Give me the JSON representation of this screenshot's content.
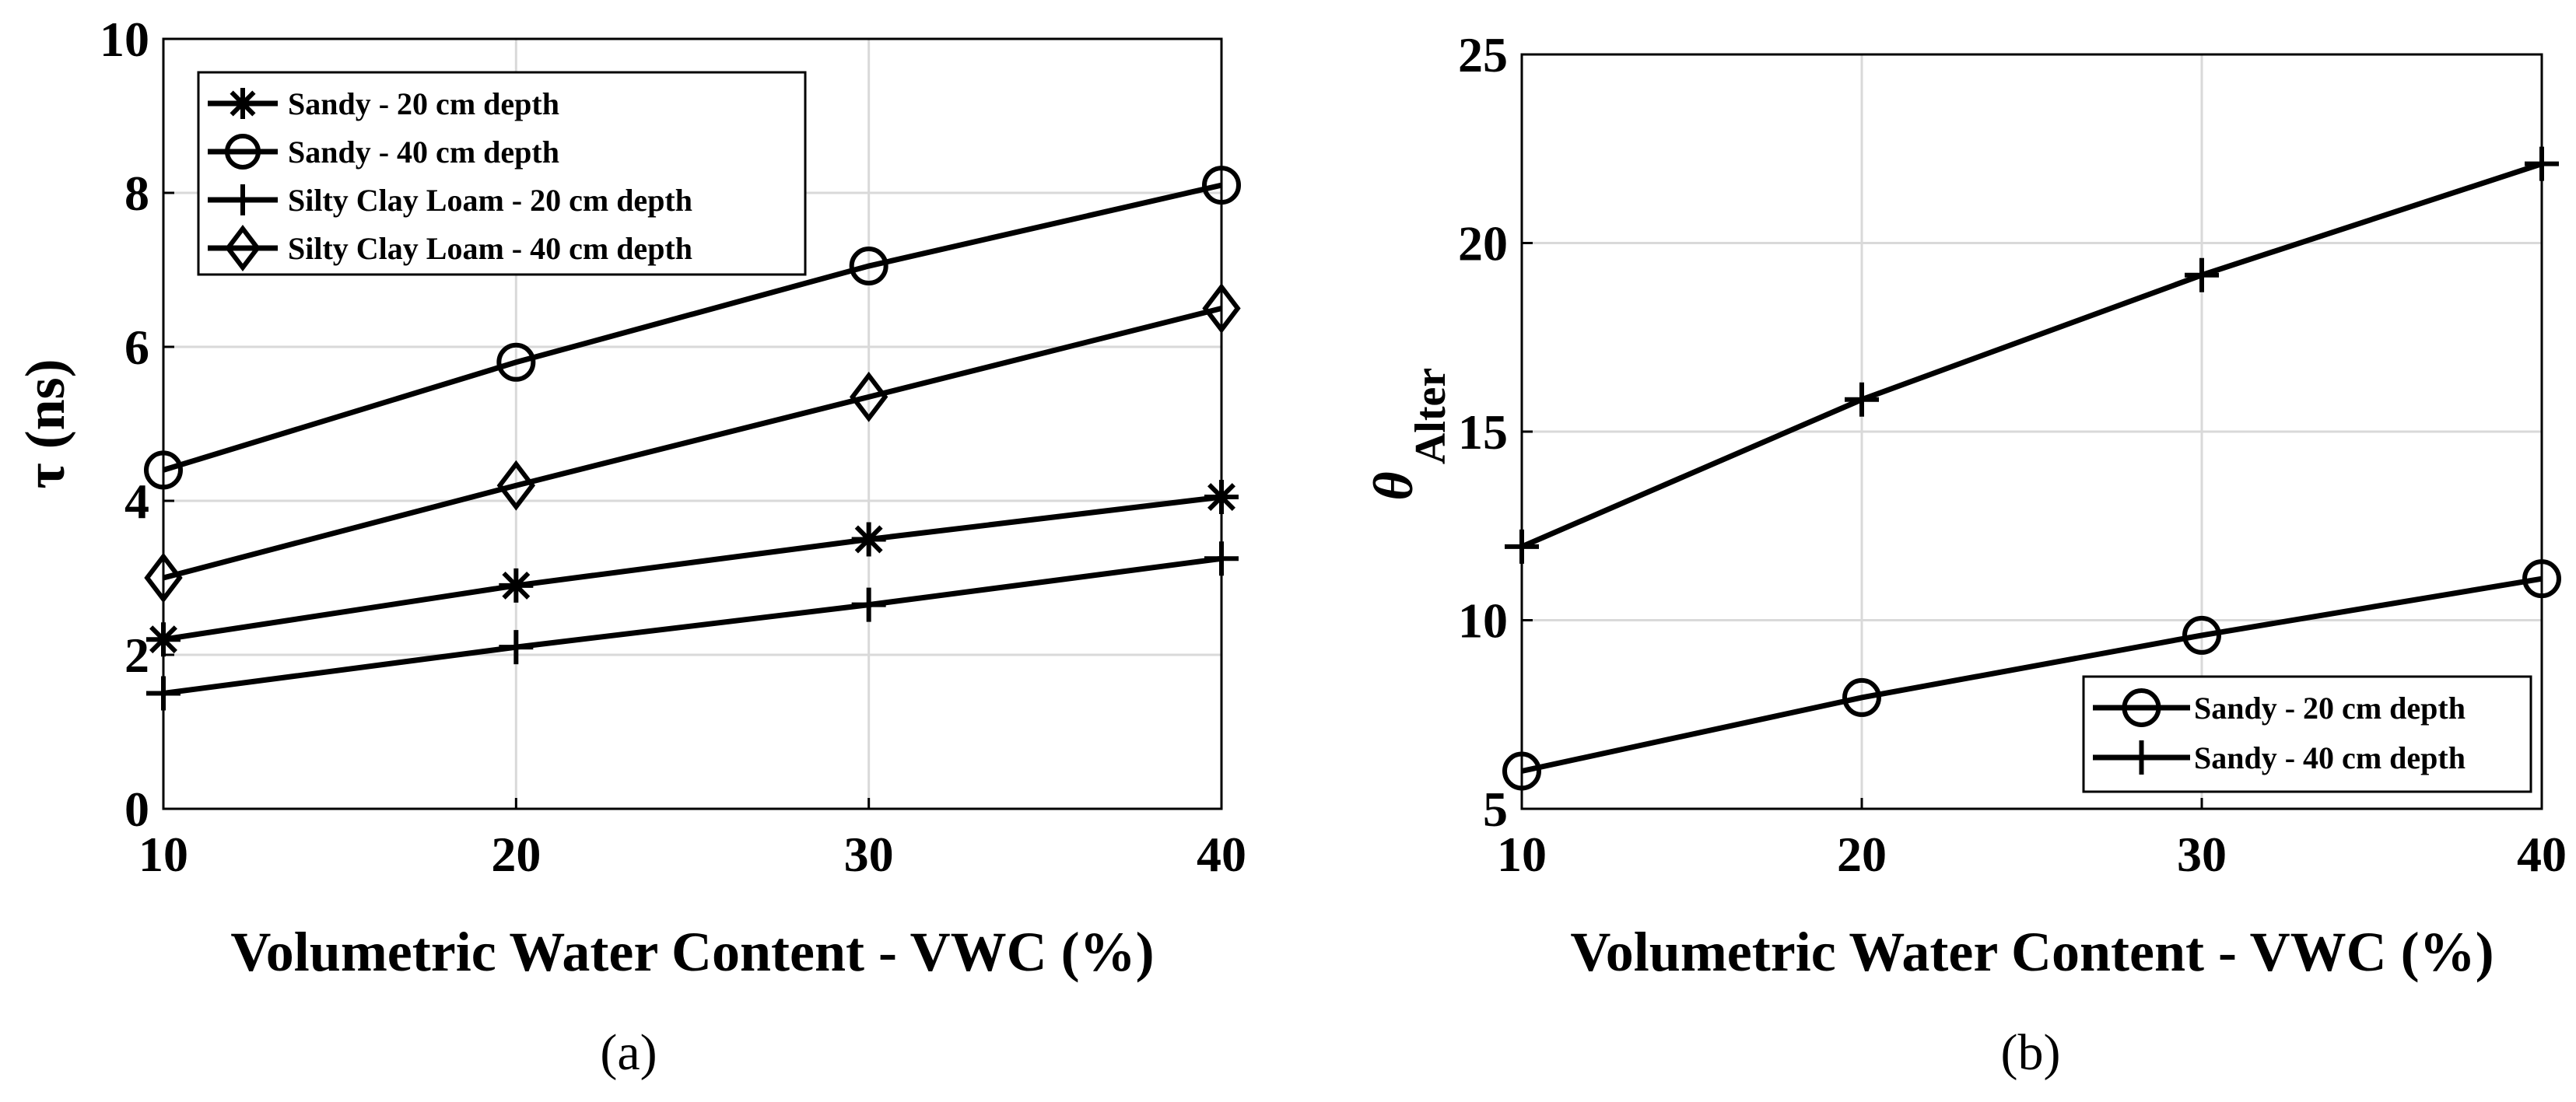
{
  "chart_data": [
    {
      "type": "line",
      "panel_label": "(a)",
      "xlabel": "Volumetric Water Content - VWC (%)",
      "ylabel": "τ (ns)",
      "xlim": [
        10,
        40
      ],
      "ylim": [
        0,
        10
      ],
      "x_ticks": [
        10,
        20,
        30,
        40
      ],
      "y_ticks": [
        0,
        2,
        4,
        6,
        8,
        10
      ],
      "grid": true,
      "legend_position": "top-left",
      "x": [
        10,
        20,
        30,
        40
      ],
      "series": [
        {
          "name": "Sandy - 20 cm depth",
          "marker": "asterisk",
          "values": [
            2.2,
            2.9,
            3.5,
            4.05
          ]
        },
        {
          "name": "Sandy - 40 cm depth",
          "marker": "circle",
          "values": [
            4.4,
            5.8,
            7.05,
            8.1
          ]
        },
        {
          "name": "Silty Clay Loam - 20 cm depth",
          "marker": "plus",
          "values": [
            1.5,
            2.1,
            2.65,
            3.25
          ]
        },
        {
          "name": "Silty Clay Loam - 40 cm depth",
          "marker": "diamond",
          "values": [
            3.0,
            4.2,
            5.35,
            6.5
          ]
        }
      ]
    },
    {
      "type": "line",
      "panel_label": "(b)",
      "xlabel": "Volumetric Water Content - VWC (%)",
      "ylabel_symbol": "θ",
      "ylabel_subscript": "Alter",
      "xlim": [
        10,
        40
      ],
      "ylim": [
        5,
        25
      ],
      "x_ticks": [
        10,
        20,
        30,
        40
      ],
      "y_ticks": [
        5,
        10,
        15,
        20,
        25
      ],
      "grid": true,
      "legend_position": "bottom-right",
      "x": [
        10,
        20,
        30,
        40
      ],
      "series": [
        {
          "name": "Sandy - 20 cm depth",
          "marker": "circle",
          "values": [
            6.0,
            7.95,
            9.6,
            11.1
          ]
        },
        {
          "name": "Sandy - 40 cm depth",
          "marker": "plus",
          "values": [
            11.95,
            15.85,
            19.15,
            22.1
          ]
        }
      ]
    }
  ]
}
